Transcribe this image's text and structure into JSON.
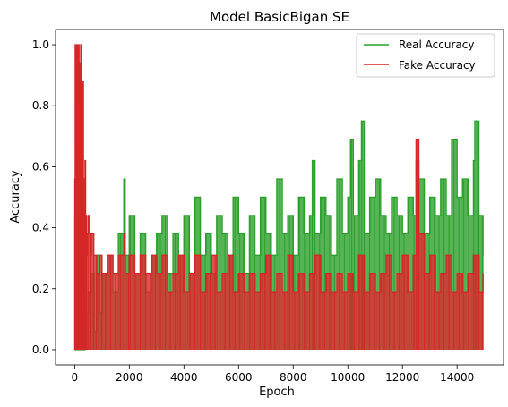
{
  "chart_data": {
    "type": "line",
    "title": "Model BasicBigan SE",
    "xlabel": "Epoch",
    "ylabel": "Accuracy",
    "xlim": [
      -700,
      15700
    ],
    "ylim": [
      -0.05,
      1.05
    ],
    "xticks": [
      0,
      2000,
      4000,
      6000,
      8000,
      10000,
      12000,
      14000
    ],
    "xtick_labels": [
      "0",
      "2000",
      "4000",
      "6000",
      "8000",
      "10000",
      "12000",
      "14000"
    ],
    "yticks": [
      0.0,
      0.2,
      0.4,
      0.6,
      0.8,
      1.0
    ],
    "ytick_labels": [
      "0.0",
      "0.2",
      "0.4",
      "0.6",
      "0.8",
      "1.0"
    ],
    "grid": false,
    "legend": "top-right",
    "series": [
      {
        "name": "Real Accuracy",
        "color": "#2ca02c",
        "x": [
          0,
          20,
          60,
          100,
          140,
          180,
          220,
          260,
          300,
          340,
          380,
          420,
          500,
          600,
          700,
          800,
          900,
          1000,
          1200,
          1400,
          1600,
          1800,
          1850,
          2000,
          2200,
          2400,
          2600,
          2800,
          3000,
          3200,
          3400,
          3600,
          3800,
          4000,
          4200,
          4400,
          4600,
          4800,
          5000,
          5200,
          5400,
          5600,
          5800,
          6000,
          6200,
          6400,
          6600,
          6800,
          7000,
          7200,
          7400,
          7600,
          7800,
          8000,
          8200,
          8400,
          8600,
          8700,
          8800,
          9000,
          9200,
          9400,
          9600,
          9800,
          10000,
          10100,
          10200,
          10400,
          10500,
          10600,
          10800,
          11000,
          11200,
          11400,
          11600,
          11800,
          12000,
          12200,
          12400,
          12500,
          12600,
          12800,
          13000,
          13200,
          13400,
          13600,
          13800,
          14000,
          14200,
          14400,
          14600,
          14650,
          14800,
          14950
        ],
        "y": [
          0.44,
          0.0,
          0.0,
          0.0,
          0.0,
          0.0,
          0.06,
          0.0,
          0.12,
          0.0,
          0.25,
          0.12,
          0.19,
          0.25,
          0.06,
          0.31,
          0.12,
          0.25,
          0.31,
          0.19,
          0.38,
          0.56,
          0.31,
          0.44,
          0.25,
          0.38,
          0.19,
          0.31,
          0.38,
          0.44,
          0.25,
          0.38,
          0.31,
          0.44,
          0.25,
          0.5,
          0.31,
          0.38,
          0.25,
          0.44,
          0.38,
          0.31,
          0.5,
          0.38,
          0.25,
          0.44,
          0.31,
          0.5,
          0.38,
          0.31,
          0.56,
          0.38,
          0.44,
          0.31,
          0.5,
          0.38,
          0.44,
          0.62,
          0.38,
          0.5,
          0.44,
          0.31,
          0.56,
          0.38,
          0.5,
          0.69,
          0.44,
          0.62,
          0.75,
          0.38,
          0.5,
          0.56,
          0.44,
          0.38,
          0.5,
          0.44,
          0.38,
          0.5,
          0.44,
          0.62,
          0.56,
          0.38,
          0.5,
          0.44,
          0.56,
          0.44,
          0.69,
          0.5,
          0.56,
          0.44,
          0.62,
          0.75,
          0.44,
          0.31
        ]
      },
      {
        "name": "Fake Accuracy",
        "color": "#d62728",
        "x": [
          0,
          20,
          40,
          60,
          80,
          100,
          120,
          140,
          160,
          180,
          200,
          220,
          240,
          260,
          280,
          300,
          320,
          340,
          360,
          380,
          400,
          420,
          440,
          460,
          500,
          550,
          600,
          700,
          800,
          900,
          1000,
          1200,
          1400,
          1600,
          1800,
          1850,
          2000,
          2200,
          2400,
          2600,
          2800,
          3000,
          3200,
          3400,
          3600,
          3800,
          4000,
          4200,
          4400,
          4600,
          4800,
          5000,
          5200,
          5400,
          5600,
          5800,
          6000,
          6200,
          6400,
          6600,
          6800,
          7000,
          7200,
          7400,
          7600,
          7800,
          8000,
          8200,
          8400,
          8600,
          8800,
          9000,
          9200,
          9400,
          9600,
          9800,
          10000,
          10200,
          10400,
          10600,
          10800,
          11000,
          11200,
          11400,
          11600,
          11800,
          12000,
          12200,
          12400,
          12500,
          12600,
          12800,
          13000,
          13200,
          13400,
          13600,
          13800,
          14000,
          14200,
          14400,
          14600,
          14800,
          14950
        ],
        "y": [
          0.56,
          1.0,
          0.81,
          1.0,
          0.94,
          1.0,
          0.69,
          1.0,
          0.62,
          0.94,
          0.44,
          1.0,
          0.5,
          0.81,
          0.38,
          0.88,
          0.31,
          0.56,
          0.44,
          0.62,
          0.25,
          0.44,
          0.31,
          0.38,
          0.44,
          0.31,
          0.38,
          0.31,
          0.25,
          0.31,
          0.25,
          0.31,
          0.25,
          0.31,
          0.38,
          0.25,
          0.31,
          0.25,
          0.31,
          0.25,
          0.31,
          0.25,
          0.31,
          0.19,
          0.25,
          0.31,
          0.19,
          0.25,
          0.31,
          0.19,
          0.25,
          0.31,
          0.19,
          0.25,
          0.31,
          0.19,
          0.25,
          0.19,
          0.25,
          0.19,
          0.25,
          0.31,
          0.19,
          0.25,
          0.19,
          0.31,
          0.19,
          0.25,
          0.19,
          0.25,
          0.31,
          0.19,
          0.25,
          0.19,
          0.25,
          0.19,
          0.25,
          0.19,
          0.31,
          0.19,
          0.25,
          0.19,
          0.25,
          0.31,
          0.19,
          0.25,
          0.31,
          0.19,
          0.31,
          0.69,
          0.38,
          0.25,
          0.31,
          0.19,
          0.25,
          0.31,
          0.19,
          0.25,
          0.19,
          0.25,
          0.31,
          0.19,
          0.25
        ]
      }
    ]
  }
}
